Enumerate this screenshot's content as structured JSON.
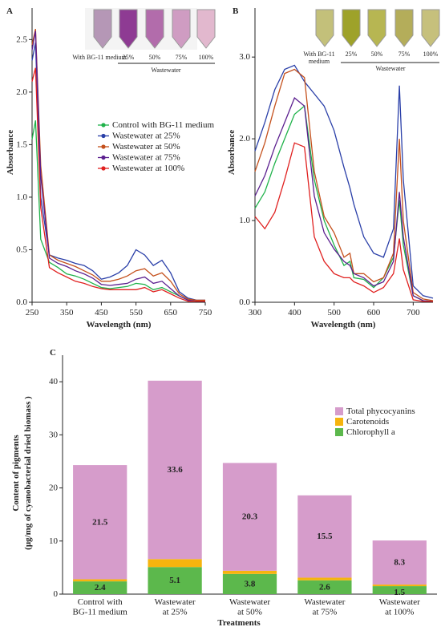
{
  "chart_data": [
    {
      "type": "line",
      "label": "A",
      "xlabel": "Wavelength (nm)",
      "ylabel": "Absorbance",
      "x": [
        250,
        260,
        275,
        300,
        325,
        350,
        375,
        400,
        425,
        450,
        475,
        500,
        525,
        550,
        575,
        600,
        625,
        650,
        675,
        700,
        725,
        750
      ],
      "xlim": [
        250,
        750
      ],
      "xticks": [
        250,
        350,
        450,
        550,
        650,
        750
      ],
      "ylim": [
        0,
        2.8
      ],
      "yticks": [
        {
          "value": 0,
          "label": "0.0"
        },
        0.5,
        {
          "value": 1,
          "label": "1.0"
        },
        1.5,
        {
          "value": 2,
          "label": "2.0"
        },
        2.5
      ],
      "legend": "right",
      "series": [
        {
          "name": "Control with BG-11 medium",
          "color": "#1fb24a",
          "values": [
            1.55,
            1.73,
            0.6,
            0.38,
            0.33,
            0.27,
            0.25,
            0.22,
            0.18,
            0.14,
            0.13,
            0.14,
            0.15,
            0.18,
            0.17,
            0.12,
            0.14,
            0.1,
            0.06,
            0.02,
            0.01,
            0.01
          ]
        },
        {
          "name": "Wastewater at 25%",
          "color": "#2a3fa8",
          "values": [
            2.3,
            2.47,
            1.0,
            0.45,
            0.42,
            0.4,
            0.37,
            0.35,
            0.3,
            0.22,
            0.24,
            0.28,
            0.35,
            0.5,
            0.45,
            0.35,
            0.4,
            0.28,
            0.1,
            0.04,
            0.02,
            0.02
          ]
        },
        {
          "name": "Wastewater at 50%",
          "color": "#c4501c",
          "values": [
            2.45,
            2.6,
            1.3,
            0.45,
            0.4,
            0.37,
            0.34,
            0.3,
            0.26,
            0.2,
            0.2,
            0.22,
            0.25,
            0.3,
            0.32,
            0.25,
            0.28,
            0.2,
            0.08,
            0.03,
            0.02,
            0.02
          ]
        },
        {
          "name": "Wastewater at 75%",
          "color": "#5b1f8f",
          "values": [
            2.4,
            2.58,
            1.2,
            0.42,
            0.37,
            0.34,
            0.3,
            0.27,
            0.23,
            0.17,
            0.16,
            0.17,
            0.18,
            0.22,
            0.24,
            0.18,
            0.2,
            0.13,
            0.06,
            0.02,
            0.01,
            0.01
          ]
        },
        {
          "name": "Wastewater at 100%",
          "color": "#e0201f",
          "values": [
            2.1,
            2.23,
            0.9,
            0.33,
            0.28,
            0.24,
            0.2,
            0.18,
            0.15,
            0.13,
            0.12,
            0.12,
            0.12,
            0.12,
            0.14,
            0.1,
            0.12,
            0.08,
            0.04,
            0.01,
            0.01,
            0.01
          ]
        }
      ],
      "inset_labels": [
        "With BG-11 medium",
        "25%",
        "50%",
        "75%",
        "100%"
      ],
      "inset_group": "Wastewater"
    },
    {
      "type": "line",
      "label": "B",
      "xlabel": "Wavelength (nm)",
      "ylabel": "Absorbance",
      "x": [
        300,
        325,
        350,
        375,
        400,
        425,
        450,
        475,
        500,
        525,
        540,
        550,
        575,
        600,
        625,
        650,
        665,
        675,
        700,
        725,
        750
      ],
      "xlim": [
        300,
        750
      ],
      "xticks": [
        300,
        400,
        500,
        600,
        700
      ],
      "ylim": [
        0,
        3.6
      ],
      "yticks": [
        {
          "value": 0,
          "label": "0.0"
        },
        {
          "value": 1,
          "label": "1.0"
        },
        {
          "value": 2,
          "label": "2.0"
        },
        {
          "value": 3,
          "label": "3.0"
        }
      ],
      "series": [
        {
          "color": "#1fb24a",
          "values": [
            1.15,
            1.35,
            1.7,
            2.0,
            2.3,
            2.4,
            1.5,
            1.0,
            0.7,
            0.45,
            0.5,
            0.3,
            0.28,
            0.18,
            0.3,
            0.55,
            1.25,
            0.7,
            0.08,
            0.02,
            0.01
          ]
        },
        {
          "color": "#2a3fa8",
          "values": [
            1.85,
            2.2,
            2.6,
            2.85,
            2.9,
            2.7,
            2.55,
            2.4,
            2.1,
            1.65,
            1.4,
            1.2,
            0.8,
            0.6,
            0.55,
            0.9,
            2.65,
            1.5,
            0.2,
            0.08,
            0.05
          ]
        },
        {
          "color": "#c4501c",
          "values": [
            1.6,
            1.95,
            2.4,
            2.8,
            2.85,
            2.75,
            1.6,
            1.05,
            0.85,
            0.55,
            0.6,
            0.35,
            0.35,
            0.25,
            0.3,
            0.6,
            2.0,
            1.0,
            0.12,
            0.04,
            0.02
          ]
        },
        {
          "color": "#5b1f8f",
          "values": [
            1.3,
            1.55,
            1.9,
            2.2,
            2.5,
            2.4,
            1.3,
            0.85,
            0.65,
            0.5,
            0.45,
            0.35,
            0.3,
            0.2,
            0.25,
            0.5,
            1.35,
            0.8,
            0.08,
            0.02,
            0.01
          ]
        },
        {
          "color": "#e0201f",
          "values": [
            1.05,
            0.9,
            1.1,
            1.5,
            1.95,
            1.9,
            0.8,
            0.5,
            0.35,
            0.3,
            0.3,
            0.25,
            0.2,
            0.12,
            0.18,
            0.35,
            0.78,
            0.4,
            0.03,
            0.01,
            0.01
          ]
        }
      ],
      "inset_labels": [
        "With BG-11\nmedium",
        "25%",
        "50%",
        "75%",
        "100%"
      ],
      "inset_group": "Wastewater"
    },
    {
      "type": "bar",
      "stacked": true,
      "label": "C",
      "xlabel": "Treatments",
      "ylabel": [
        "Content of pigments",
        "(μg/mg of cyanobacterial dried biomass )"
      ],
      "categories": [
        "Control with\nBG-11 medium",
        "Wastewater\nat 25%",
        "Wastewater\nat 50%",
        "Wastewater\nat 75%",
        "Wastewater\nat 100%"
      ],
      "ylim": [
        0,
        45
      ],
      "yticks": [
        0,
        10,
        20,
        30,
        40
      ],
      "legend": "upper right",
      "series": [
        {
          "name": "Chlorophyll a",
          "color": "#5cb84c",
          "values": [
            2.4,
            5.1,
            3.8,
            2.6,
            1.5
          ],
          "labels": true
        },
        {
          "name": "Carotenoids",
          "color": "#f6b40e",
          "values": [
            0.4,
            1.5,
            0.6,
            0.5,
            0.3
          ]
        },
        {
          "name": "Total phycocyanins",
          "color": "#d69ccb",
          "values": [
            21.5,
            33.6,
            20.3,
            15.5,
            8.3
          ],
          "labels": true
        }
      ]
    }
  ]
}
